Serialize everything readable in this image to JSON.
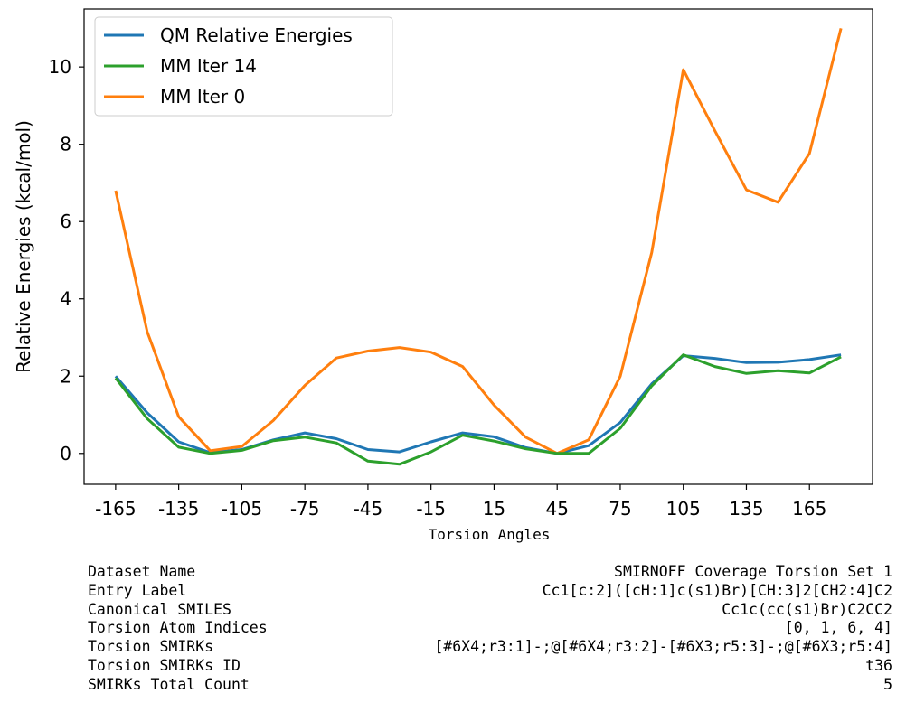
{
  "chart_data": {
    "type": "line",
    "xlabel": "Torsion Angles",
    "ylabel": "Relative Energies (kcal/mol)",
    "xlim": [
      -180,
      195
    ],
    "ylim": [
      -0.8,
      11.5
    ],
    "xticks": [
      -165,
      -135,
      -105,
      -75,
      -45,
      -15,
      15,
      45,
      75,
      105,
      135,
      165
    ],
    "yticks": [
      0,
      2,
      4,
      6,
      8,
      10
    ],
    "legend_position": "top-left",
    "x": [
      -165,
      -150,
      -135,
      -120,
      -105,
      -90,
      -75,
      -60,
      -45,
      -30,
      -15,
      0,
      15,
      30,
      45,
      60,
      75,
      90,
      105,
      120,
      135,
      150,
      165,
      180
    ],
    "series": [
      {
        "name": "QM Relative Energies",
        "color": "#1f77b4",
        "values": [
          2.0,
          1.05,
          0.3,
          0.02,
          0.1,
          0.35,
          0.53,
          0.38,
          0.1,
          0.04,
          0.3,
          0.53,
          0.43,
          0.15,
          0.0,
          0.2,
          0.8,
          1.8,
          2.53,
          2.46,
          2.35,
          2.36,
          2.43,
          2.55
        ]
      },
      {
        "name": "MM Iter 14",
        "color": "#2ca02c",
        "values": [
          1.95,
          0.9,
          0.16,
          0.0,
          0.08,
          0.33,
          0.42,
          0.27,
          -0.2,
          -0.28,
          0.04,
          0.47,
          0.32,
          0.12,
          0.0,
          0.0,
          0.65,
          1.75,
          2.55,
          2.25,
          2.07,
          2.14,
          2.08,
          2.5
        ]
      },
      {
        "name": "MM Iter 0",
        "color": "#ff7f0e",
        "values": [
          6.8,
          3.15,
          0.95,
          0.07,
          0.18,
          0.85,
          1.76,
          2.47,
          2.65,
          2.74,
          2.62,
          2.25,
          1.25,
          0.42,
          0.0,
          0.35,
          2.0,
          5.2,
          9.93,
          8.35,
          6.82,
          6.5,
          7.76,
          11.0
        ]
      }
    ]
  },
  "info": [
    {
      "label": "Dataset Name",
      "value": "SMIRNOFF Coverage Torsion Set 1"
    },
    {
      "label": "Entry Label",
      "value": "Cc1[c:2]([cH:1]c(s1)Br)[CH:3]2[CH2:4]C2"
    },
    {
      "label": "Canonical SMILES",
      "value": "Cc1c(cc(s1)Br)C2CC2"
    },
    {
      "label": "Torsion Atom Indices",
      "value": "[0, 1, 6, 4]"
    },
    {
      "label": "Torsion SMIRKs",
      "value": "[#6X4;r3:1]-;@[#6X4;r3:2]-[#6X3;r5:3]-;@[#6X3;r5:4]"
    },
    {
      "label": "Torsion SMIRKs ID",
      "value": "t36"
    },
    {
      "label": "SMIRKs Total Count",
      "value": "5"
    }
  ]
}
